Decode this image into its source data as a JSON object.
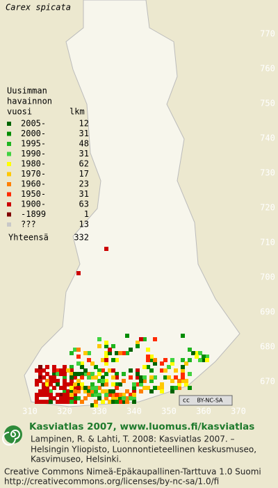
{
  "header": {
    "title": "Carex spicata"
  },
  "legend": {
    "heading": [
      "Uusimman",
      "havainnon",
      "vuosi"
    ],
    "count_heading": "lkm",
    "rows": [
      {
        "label": "2005-",
        "count": 12,
        "color": "#006400"
      },
      {
        "label": "2000-",
        "count": 31,
        "color": "#008c00"
      },
      {
        "label": "1995-",
        "count": 48,
        "color": "#1fb51f"
      },
      {
        "label": "1990-",
        "count": 31,
        "color": "#3fd23f"
      },
      {
        "label": "1980-",
        "count": 62,
        "color": "#ffff00"
      },
      {
        "label": "1970-",
        "count": 17,
        "color": "#ffc800"
      },
      {
        "label": "1960-",
        "count": 23,
        "color": "#ff7f00"
      },
      {
        "label": "1950-",
        "count": 31,
        "color": "#ff2a00"
      },
      {
        "label": "1900-",
        "count": 63,
        "color": "#cc0000"
      },
      {
        "label": "-1899",
        "count": 1,
        "color": "#7f0000"
      },
      {
        "label": "???",
        "count": 13,
        "color": "#c8c8c8"
      }
    ],
    "total_label": "Yhteensä",
    "total": 332
  },
  "map": {
    "yticks": [
      770,
      760,
      750,
      740,
      730,
      720,
      710,
      700,
      690,
      680,
      670
    ],
    "xticks": [
      310,
      320,
      330,
      340,
      350,
      360,
      370
    ],
    "license_badge": [
      "cc",
      "BY-NC-SA"
    ]
  },
  "footer": {
    "heading": "Kasviatlas 2007, www.luomus.fi/kasviatlas",
    "citation": [
      "Lampinen, R. & Lahti, T. 2008: Kasviatlas 2007. –",
      "Helsingin Yliopisto, Luonnontieteellinen keskusmuseo,",
      "Kasvimuseo, Helsinki."
    ],
    "license": [
      "Creative Commons Nimeä-Epäkaupallinen-Tarttuva 1.0 Suomi",
      "http://creativecommons.org/licenses/by-nc-sa/1.0/fi"
    ]
  }
}
